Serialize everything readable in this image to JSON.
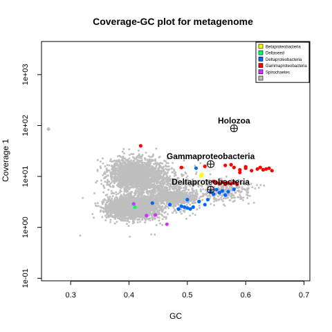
{
  "chart_data": {
    "type": "scatter",
    "title": "Coverage-GC plot for metagenome",
    "xlabel": "GC",
    "ylabel": "Coverage  1",
    "xlim": [
      0.25,
      0.71
    ],
    "ylim_log10": [
      -1.05,
      3.65
    ],
    "y_scale": "log10",
    "x_ticks": [
      0.3,
      0.4,
      0.5,
      0.6,
      0.7
    ],
    "x_tick_labels": [
      "0.3",
      "0.4",
      "0.5",
      "0.6",
      "0.7"
    ],
    "y_ticks": [
      0.1,
      1,
      10,
      100,
      1000
    ],
    "y_tick_labels": [
      "1e-01",
      "1e+00",
      "1e+01",
      "1e+02",
      "1e+03"
    ],
    "legend_position": "top-right",
    "background_points_color": "#bebebe",
    "series": [
      {
        "name": "Betaproteobacteria",
        "color": "#ffff00",
        "points": [
          [
            0.525,
            11.0
          ],
          [
            0.523,
            10.2
          ]
        ]
      },
      {
        "name": "Deltaseed",
        "color": "#00ff66",
        "points": [
          [
            0.41,
            2.5
          ]
        ]
      },
      {
        "name": "Deltaproteobacteria",
        "color": "#0066ff",
        "points": [
          [
            0.44,
            3.0
          ],
          [
            0.47,
            2.8
          ],
          [
            0.485,
            2.3
          ],
          [
            0.49,
            2.6
          ],
          [
            0.495,
            2.5
          ],
          [
            0.5,
            2.4
          ],
          [
            0.505,
            2.3
          ],
          [
            0.51,
            2.5
          ],
          [
            0.52,
            3.2
          ],
          [
            0.53,
            2.8
          ],
          [
            0.535,
            3.5
          ],
          [
            0.54,
            5.0
          ],
          [
            0.545,
            4.5
          ],
          [
            0.55,
            5.5
          ],
          [
            0.555,
            4.8
          ],
          [
            0.56,
            5.2
          ],
          [
            0.565,
            4.3
          ],
          [
            0.57,
            5.0
          ],
          [
            0.58,
            5.6
          ],
          [
            0.515,
            14.5
          ],
          [
            0.5,
            3.5
          ]
        ]
      },
      {
        "name": "Gammaproteobacteria",
        "color": "#ff0000",
        "points": [
          [
            0.42,
            40.0
          ],
          [
            0.49,
            15.0
          ],
          [
            0.53,
            15.8
          ],
          [
            0.545,
            8.0
          ],
          [
            0.55,
            7.5
          ],
          [
            0.555,
            7.2
          ],
          [
            0.56,
            7.8
          ],
          [
            0.565,
            7.0
          ],
          [
            0.57,
            7.5
          ],
          [
            0.575,
            7.2
          ],
          [
            0.58,
            7.7
          ],
          [
            0.585,
            7.0
          ],
          [
            0.565,
            16.5
          ],
          [
            0.575,
            17.0
          ],
          [
            0.58,
            15.0
          ],
          [
            0.59,
            13.5
          ],
          [
            0.6,
            14.5
          ],
          [
            0.61,
            13.0
          ],
          [
            0.62,
            14.0
          ],
          [
            0.625,
            15.0
          ],
          [
            0.63,
            13.5
          ],
          [
            0.635,
            14.0
          ],
          [
            0.64,
            14.5
          ],
          [
            0.645,
            13.0
          ],
          [
            0.59,
            12.0
          ],
          [
            0.6,
            15.5
          ]
        ]
      },
      {
        "name": "Spirochaetes",
        "color": "#cc33ff",
        "points": [
          [
            0.408,
            2.9
          ],
          [
            0.43,
            1.7
          ],
          [
            0.445,
            1.75
          ],
          [
            0.465,
            1.15
          ]
        ]
      },
      {
        "name": "",
        "color": "#bebebe",
        "points": []
      }
    ],
    "annotations": [
      {
        "text": "Holozoa",
        "x": 0.58,
        "y": 88
      },
      {
        "text": "Gammaproteobacteria",
        "x": 0.54,
        "y": 17.5
      },
      {
        "text": "Deltaproteobacteria",
        "x": 0.54,
        "y": 5.5
      }
    ]
  }
}
